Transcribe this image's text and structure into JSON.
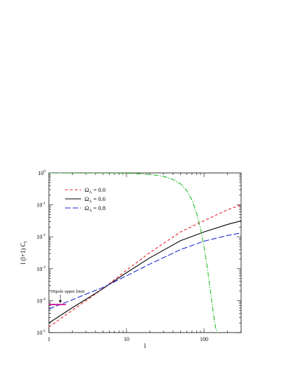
{
  "chart_data": {
    "type": "line",
    "xscale": "log",
    "yscale": "log",
    "xlim": [
      1,
      300
    ],
    "ylim": [
      1e-05,
      1
    ],
    "xlabel": "l",
    "ylabel": "l (l+1) C",
    "ylabel_sub": "l",
    "grid": false,
    "legend_position": "top-left",
    "x_ticks": [
      {
        "value": 1,
        "label": "1"
      },
      {
        "value": 10,
        "label": "10"
      },
      {
        "value": 100,
        "label": "100"
      }
    ],
    "y_ticks": [
      {
        "value": 1,
        "base": "10",
        "exp": "0"
      },
      {
        "value": 0.1,
        "base": "10",
        "exp": "-1"
      },
      {
        "value": 0.01,
        "base": "10",
        "exp": "-2"
      },
      {
        "value": 0.001,
        "base": "10",
        "exp": "-3"
      },
      {
        "value": 0.0001,
        "base": "10",
        "exp": "-4"
      },
      {
        "value": 1e-05,
        "base": "10",
        "exp": "-5"
      }
    ],
    "series": [
      {
        "name": "Ω_Λ = 0.0",
        "legend_symbol": "Ω",
        "legend_sub": "Λ",
        "legend_value": " = 0.0",
        "color": "#e8202a",
        "dash": "4,3",
        "x": [
          1,
          2,
          3,
          5,
          10,
          20,
          50,
          100,
          200,
          300
        ],
        "y": [
          1.5e-05,
          5e-05,
          0.0001,
          0.00024,
          0.0009,
          0.0032,
          0.0143,
          0.032,
          0.07,
          0.1
        ]
      },
      {
        "name": "Ω_Λ = 0.6",
        "legend_symbol": "Ω",
        "legend_sub": "Λ",
        "legend_value": " = 0.6",
        "color": "#000000",
        "dash": "",
        "x": [
          1,
          2,
          3,
          5,
          10,
          20,
          50,
          100,
          200,
          300
        ],
        "y": [
          2e-05,
          6e-05,
          0.00011,
          0.00024,
          0.00075,
          0.0022,
          0.0076,
          0.0142,
          0.0244,
          0.0316
        ]
      },
      {
        "name": "Ω_Λ = 0.8",
        "legend_symbol": "Ω",
        "legend_sub": "Λ",
        "legend_value": " = 0.8",
        "color": "#1f2bd0",
        "dash": "8,3",
        "x": [
          1,
          2,
          3,
          5,
          10,
          20,
          50,
          100,
          200,
          300
        ],
        "y": [
          5.5e-05,
          0.000106,
          0.00016,
          0.00026,
          0.0006,
          0.0014,
          0.004,
          0.0073,
          0.011,
          0.0132
        ]
      },
      {
        "color": "#22bb22",
        "dash": "7,2,1.5,2",
        "x": [
          1,
          5,
          10,
          20,
          30,
          40,
          50,
          60,
          70,
          80,
          90,
          100,
          110,
          120,
          130,
          140,
          150
        ],
        "y": [
          1,
          0.998,
          0.98,
          0.9,
          0.78,
          0.62,
          0.45,
          0.28,
          0.14,
          0.056,
          0.018,
          0.0048,
          0.0011,
          0.00023,
          5e-05,
          1.5e-05,
          9.5e-06
        ]
      }
    ],
    "annotations": [
      {
        "text": "Dipole upper limit",
        "x": 1.4,
        "y": 7.6e-05,
        "color": "#d0209a"
      }
    ]
  }
}
